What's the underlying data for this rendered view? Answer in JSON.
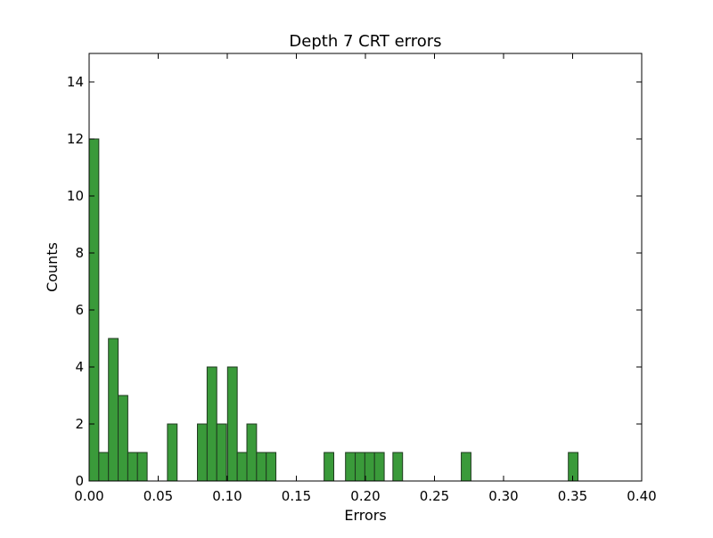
{
  "chart_data": {
    "type": "bar",
    "title": "Depth 7 CRT errors",
    "xlabel": "Errors",
    "ylabel": "Counts",
    "xlim": [
      0.0,
      0.4
    ],
    "ylim": [
      0,
      15
    ],
    "xticks": [
      0.0,
      0.05,
      0.1,
      0.15,
      0.2,
      0.25,
      0.3,
      0.35,
      0.4
    ],
    "xtick_labels": [
      "0.00",
      "0.05",
      "0.10",
      "0.15",
      "0.20",
      "0.25",
      "0.30",
      "0.35",
      "0.40"
    ],
    "yticks": [
      0,
      2,
      4,
      6,
      8,
      10,
      12,
      14
    ],
    "ytick_labels": [
      "0",
      "2",
      "4",
      "6",
      "8",
      "10",
      "12",
      "14"
    ],
    "grid": false,
    "bin_width": 0.007,
    "bars_color": "#3a9a3a",
    "edge_color": "#1f3a1f",
    "bins": [
      {
        "x": 0.0,
        "value": 12
      },
      {
        "x": 0.007,
        "value": 1
      },
      {
        "x": 0.014,
        "value": 5
      },
      {
        "x": 0.021,
        "value": 3
      },
      {
        "x": 0.028,
        "value": 1
      },
      {
        "x": 0.035,
        "value": 1
      },
      {
        "x": 0.0567,
        "value": 2
      },
      {
        "x": 0.0784,
        "value": 2
      },
      {
        "x": 0.0854,
        "value": 4
      },
      {
        "x": 0.0924,
        "value": 2
      },
      {
        "x": 0.1002,
        "value": 4
      },
      {
        "x": 0.1072,
        "value": 1
      },
      {
        "x": 0.1142,
        "value": 2
      },
      {
        "x": 0.1212,
        "value": 1
      },
      {
        "x": 0.1282,
        "value": 1
      },
      {
        "x": 0.1701,
        "value": 1
      },
      {
        "x": 0.1856,
        "value": 1
      },
      {
        "x": 0.1926,
        "value": 1
      },
      {
        "x": 0.1996,
        "value": 1
      },
      {
        "x": 0.2066,
        "value": 1
      },
      {
        "x": 0.2199,
        "value": 1
      },
      {
        "x": 0.2694,
        "value": 1
      },
      {
        "x": 0.3469,
        "value": 1
      }
    ]
  }
}
